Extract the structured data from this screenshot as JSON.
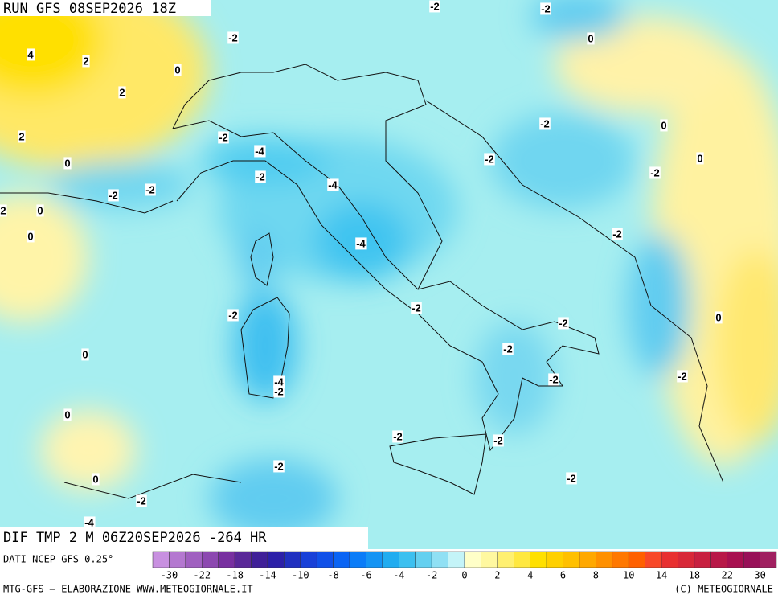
{
  "header": {
    "run": "RUN GFS 08SEP2026 18Z"
  },
  "map": {
    "field": "DIF TMP 2 M 06Z20SEP2026 -264 HR",
    "source": "DATI NCEP GFS 0.25°",
    "contour_labels": [
      "-2",
      "-2",
      "0",
      "-2",
      "4",
      "2",
      "0",
      "2",
      "-2",
      "0",
      "2",
      "-2",
      "-4",
      "0",
      "0",
      "-2",
      "-2",
      "-2",
      "-4",
      "-2",
      "-2",
      "2",
      "0",
      "0",
      "-2",
      "-4",
      "-2",
      "-2",
      "0",
      "-2",
      "-2",
      "0",
      "-2",
      "-4",
      "-2",
      "-2",
      "0",
      "-2",
      "-2",
      "-2",
      "0",
      "-2",
      "-2",
      "-4"
    ]
  },
  "legend": {
    "labels": [
      "-30",
      "-22",
      "-18",
      "-14",
      "-10",
      "-8",
      "-6",
      "-4",
      "-2",
      "0",
      "2",
      "4",
      "6",
      "8",
      "10",
      "14",
      "18",
      "22",
      "30"
    ],
    "colors": [
      "#c890e0",
      "#b478d0",
      "#a060c0",
      "#8c48b0",
      "#7830a0",
      "#5a2898",
      "#402098",
      "#2c20a8",
      "#2030c0",
      "#1840d8",
      "#1050e8",
      "#0a64f4",
      "#0a7cf8",
      "#1494f4",
      "#20acf0",
      "#3cc0f0",
      "#64d0f0",
      "#90e0f4",
      "#c4f4f8",
      "#ffffc8",
      "#fff8a0",
      "#fff070",
      "#ffe840",
      "#ffe000",
      "#ffd000",
      "#ffc000",
      "#ffa800",
      "#ff9000",
      "#ff7800",
      "#ff6000",
      "#f84828",
      "#e83030",
      "#d82838",
      "#c82040",
      "#b81848",
      "#a81050",
      "#981058",
      "#a02060"
    ]
  },
  "footer": {
    "left": "MTG-GFS — ELABORAZIONE WWW.METEOGIORNALE.IT",
    "right": "(C) METEOGIORNALE"
  }
}
